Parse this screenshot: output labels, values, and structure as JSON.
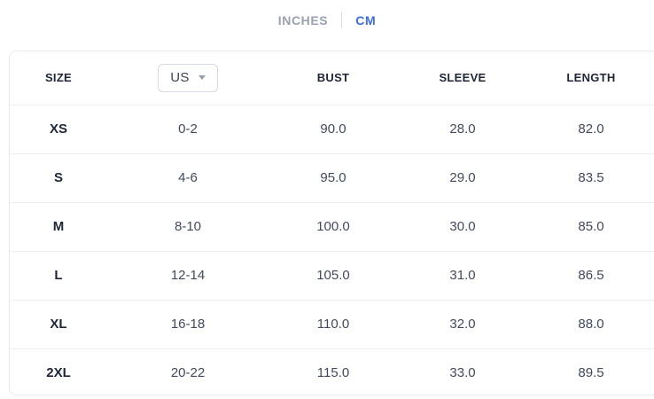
{
  "tabs": {
    "inches_label": "INCHES",
    "cm_label": "CM",
    "active": "CM"
  },
  "table": {
    "headers": {
      "size": "SIZE",
      "bust": "BUST",
      "sleeve": "SLEEVE",
      "length": "LENGTH"
    },
    "sizing_dropdown": {
      "value": "US",
      "icon": "caret-down"
    },
    "rows": [
      {
        "size": "XS",
        "us": "0-2",
        "bust": "90.0",
        "sleeve": "28.0",
        "length": "82.0"
      },
      {
        "size": "S",
        "us": "4-6",
        "bust": "95.0",
        "sleeve": "29.0",
        "length": "83.5"
      },
      {
        "size": "M",
        "us": "8-10",
        "bust": "100.0",
        "sleeve": "30.0",
        "length": "85.0"
      },
      {
        "size": "L",
        "us": "12-14",
        "bust": "105.0",
        "sleeve": "31.0",
        "length": "86.5"
      },
      {
        "size": "XL",
        "us": "16-18",
        "bust": "110.0",
        "sleeve": "32.0",
        "length": "88.0"
      },
      {
        "size": "2XL",
        "us": "20-22",
        "bust": "115.0",
        "sleeve": "33.0",
        "length": "89.5"
      }
    ]
  },
  "colors": {
    "active_tab_blue": "#3b6ae6",
    "inactive_tab_gray": "#9aa1b1",
    "card_border": "#e7e9ef",
    "row_separator": "#eceef2",
    "header_text": "#1e2637",
    "cell_text": "#414a5c"
  }
}
